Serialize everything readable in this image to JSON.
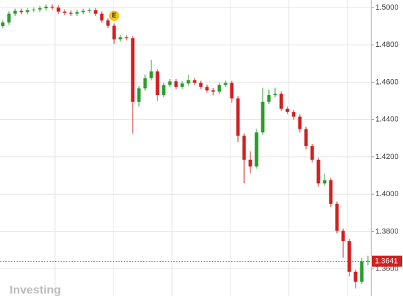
{
  "chart_data": {
    "type": "candlestick",
    "ylim": [
      1.3455,
      1.504
    ],
    "yticks": [
      {
        "value": 1.36,
        "label": "1.3600"
      },
      {
        "value": 1.38,
        "label": "1.3800"
      },
      {
        "value": 1.4,
        "label": "1.4000"
      },
      {
        "value": 1.42,
        "label": "1.4200"
      },
      {
        "value": 1.44,
        "label": "1.4400"
      },
      {
        "value": 1.46,
        "label": "1.4600"
      },
      {
        "value": 1.48,
        "label": "1.4800"
      },
      {
        "value": 1.5,
        "label": "1.5000"
      }
    ],
    "grid": true,
    "up_color": "#2a9d2a",
    "down_color": "#d21f1f",
    "open": [
      1.49,
      1.492,
      1.4967,
      1.4982,
      1.4975,
      1.4985,
      1.4989,
      1.4996,
      1.5004,
      1.5,
      1.4978,
      1.4971,
      1.4967,
      1.4975,
      1.4982,
      1.4985,
      1.4967,
      1.4931,
      1.4902,
      1.4829,
      1.484,
      1.4836,
      1.4495,
      1.4567,
      1.4622,
      1.4658,
      1.4531,
      1.4585,
      1.4604,
      1.4575,
      1.4593,
      1.4611,
      1.4596,
      1.4575,
      1.4556,
      1.4549,
      1.4585,
      1.4596,
      1.4513,
      1.4313,
      1.4185,
      1.4149,
      1.4331,
      1.4495,
      1.4531,
      1.4538,
      1.4458,
      1.444,
      1.4415,
      1.4349,
      1.4258,
      1.4185,
      1.4058,
      1.4075,
      1.3949,
      1.3804,
      1.3749,
      1.3585,
      1.3531,
      1.364
    ],
    "high": [
      1.4932,
      1.4979,
      1.4994,
      1.4994,
      1.4997,
      1.5001,
      1.5008,
      1.5016,
      1.5016,
      1.5012,
      1.499,
      1.4983,
      1.4987,
      1.4994,
      1.4997,
      1.4997,
      1.4979,
      1.4943,
      1.4914,
      1.4852,
      1.4852,
      1.4848,
      1.4579,
      1.464,
      1.472,
      1.467,
      1.4597,
      1.4616,
      1.4616,
      1.4605,
      1.464,
      1.4623,
      1.4608,
      1.4587,
      1.4568,
      1.4597,
      1.4608,
      1.4608,
      1.4525,
      1.4325,
      1.423,
      1.435,
      1.457,
      1.456,
      1.457,
      1.455,
      1.447,
      1.4452,
      1.4427,
      1.4361,
      1.427,
      1.4197,
      1.411,
      1.4087,
      1.3961,
      1.3816,
      1.3761,
      1.3597,
      1.366,
      1.367
    ],
    "low": [
      1.4888,
      1.4908,
      1.4955,
      1.4963,
      1.4963,
      1.4973,
      1.4977,
      1.4984,
      1.4988,
      1.4966,
      1.4959,
      1.4955,
      1.4955,
      1.4963,
      1.497,
      1.4955,
      1.4919,
      1.489,
      1.4805,
      1.4817,
      1.4824,
      1.4324,
      1.447,
      1.4555,
      1.461,
      1.45,
      1.4519,
      1.4573,
      1.4563,
      1.4563,
      1.4581,
      1.4584,
      1.4563,
      1.4544,
      1.453,
      1.4537,
      1.4573,
      1.449,
      1.428,
      1.4058,
      1.4113,
      1.4137,
      1.4319,
      1.4483,
      1.4519,
      1.4446,
      1.4428,
      1.44,
      1.433,
      1.424,
      1.417,
      1.404,
      1.4046,
      1.393,
      1.379,
      1.366,
      1.356,
      1.3495,
      1.3519,
      1.362
    ],
    "close": [
      1.492,
      1.4967,
      1.4982,
      1.4975,
      1.4985,
      1.4989,
      1.4996,
      1.5004,
      1.5,
      1.4978,
      1.4971,
      1.4967,
      1.4975,
      1.4982,
      1.4985,
      1.4967,
      1.4931,
      1.4902,
      1.4829,
      1.484,
      1.4836,
      1.4495,
      1.4567,
      1.4622,
      1.4658,
      1.4531,
      1.4585,
      1.4604,
      1.4575,
      1.4593,
      1.4611,
      1.4596,
      1.4575,
      1.4556,
      1.4549,
      1.4585,
      1.4596,
      1.4513,
      1.4313,
      1.4185,
      1.4149,
      1.4331,
      1.4495,
      1.4531,
      1.4538,
      1.4458,
      1.444,
      1.4415,
      1.4349,
      1.4258,
      1.4185,
      1.4058,
      1.4075,
      1.3949,
      1.3804,
      1.3749,
      1.3585,
      1.3531,
      1.364,
      1.3641
    ],
    "current_price": 1.3641,
    "event_marker": "E",
    "watermark": "Investing"
  }
}
